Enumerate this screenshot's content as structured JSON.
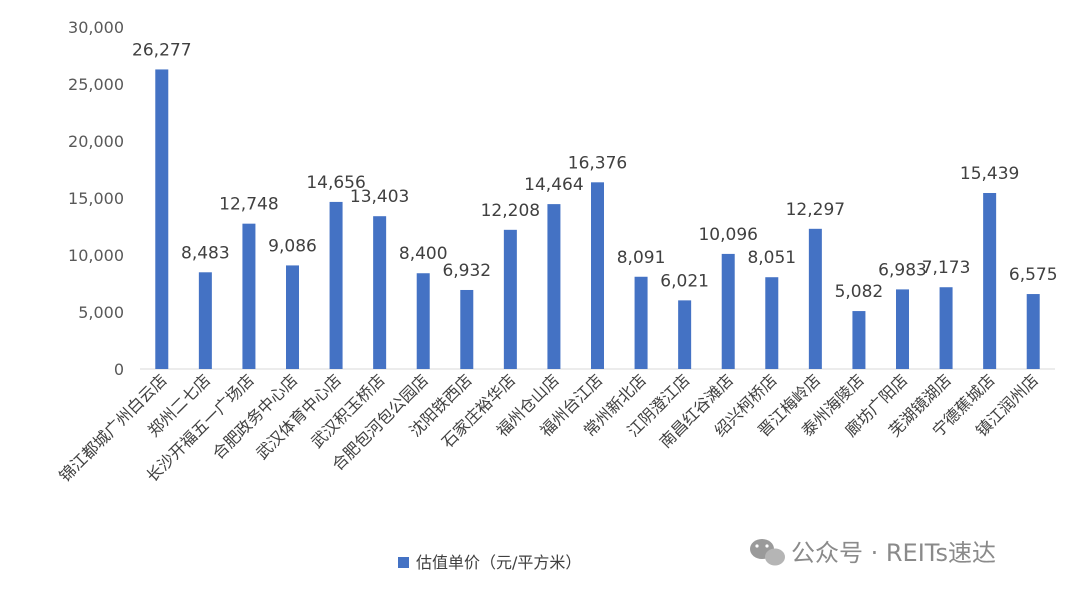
{
  "chart_data": {
    "type": "bar",
    "categories": [
      "锦江都城广州白云店",
      "郑州二七店",
      "长沙开福五一广场店",
      "合肥政务中心店",
      "武汉体育中心店",
      "武汉积玉桥店",
      "合肥包河包公园店",
      "沈阳铁西店",
      "石家庄裕华店",
      "福州仓山店",
      "福州台江店",
      "常州新北店",
      "江阴澄江店",
      "南昌红谷滩店",
      "绍兴柯桥店",
      "晋江梅岭店",
      "泰州海陵店",
      "廊坊广阳店",
      "芜湖镜湖店",
      "宁德蕉城店",
      "镇江润州店"
    ],
    "series": [
      {
        "name": "估值单价（元/平方米）",
        "values": [
          26277,
          8483,
          12748,
          9086,
          14656,
          13403,
          8400,
          6932,
          12208,
          14464,
          16376,
          8091,
          6021,
          10096,
          8051,
          12297,
          5082,
          6983,
          7173,
          15439,
          6575
        ]
      }
    ],
    "data_labels": [
      "26,277",
      "8,483",
      "12,748",
      "9,086",
      "14,656",
      "13,403",
      "8,400",
      "6,932",
      "12,208",
      "14,464",
      "16,376",
      "8,091",
      "6,021",
      "10,096",
      "8,051",
      "12,297",
      "5,082",
      "6,983",
      "7,173",
      "15,439",
      "6,575"
    ],
    "yticks": [
      "0",
      "5,000",
      "10,000",
      "15,000",
      "20,000",
      "25,000",
      "30,000"
    ],
    "ylim": [
      0,
      30000
    ],
    "grid": false,
    "legend_position": "bottom",
    "bar_color": "#4472C4"
  },
  "watermark": {
    "icon": "wechat-icon",
    "text": "公众号 · REITs速达"
  }
}
